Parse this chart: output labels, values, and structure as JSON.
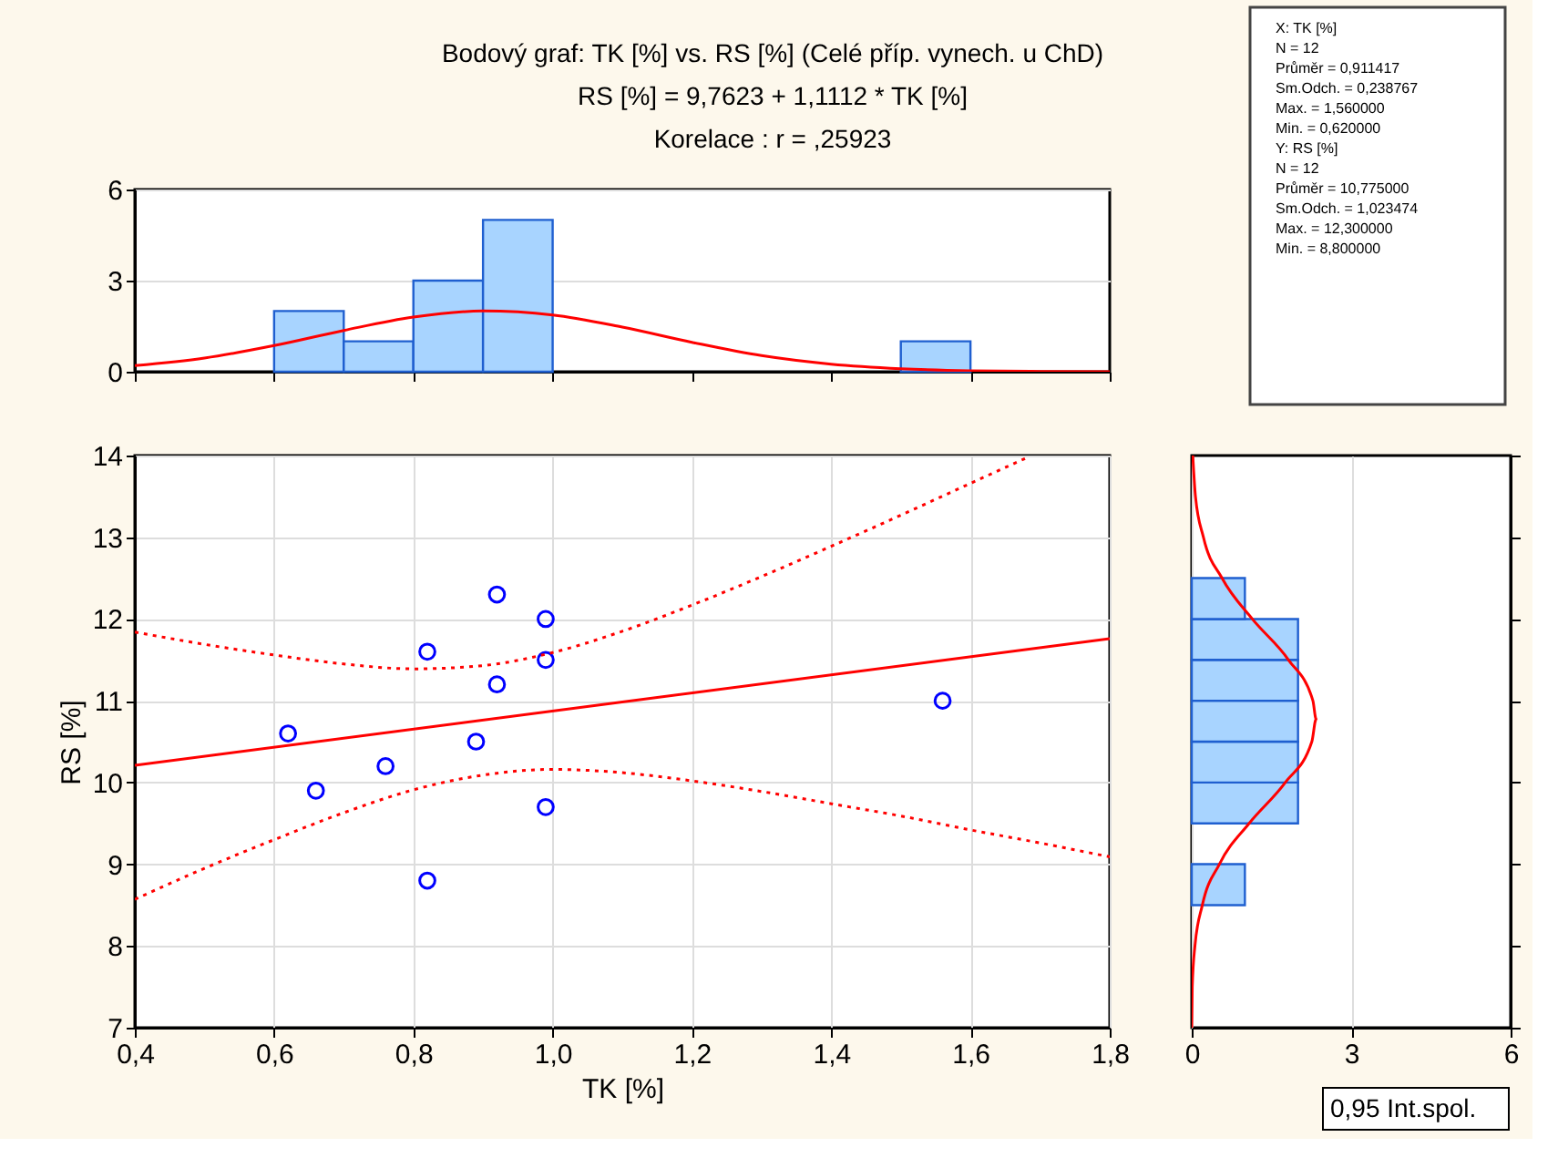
{
  "chart_data": [
    {
      "type": "histogram",
      "title": "Bodový graf: TK [%] vs. RS [%] (Celé příp. vynech. u ChD)",
      "subtitle": "RS [%] = 9,7623 + 1,1112 * TK [%]",
      "annotations": [
        "Korelace :    r = ,25923"
      ],
      "bins": [
        0.6,
        0.7,
        0.8,
        0.9,
        1.0,
        1.1,
        1.2,
        1.3,
        1.4,
        1.5,
        1.6
      ],
      "values": [
        2,
        1,
        3,
        5,
        0,
        0,
        0,
        0,
        0,
        1
      ],
      "color": "#a8d4ff",
      "series": [
        {
          "type": "line",
          "color": "#ff0000",
          "line_style": "solid",
          "x": [
            0.4,
            0.5,
            0.6,
            0.7,
            0.8,
            0.9,
            1.0,
            1.1,
            1.2,
            1.3,
            1.4,
            1.5,
            1.6,
            1.7,
            1.8
          ],
          "values": [
            0.2,
            0.45,
            0.86,
            1.36,
            1.8,
            2.0,
            1.87,
            1.47,
            0.97,
            0.53,
            0.25,
            0.1,
            0.03,
            0.01,
            0
          ]
        }
      ],
      "xlim": [
        0.4,
        1.8
      ],
      "xticks": [
        {
          "value": 0.4,
          "label": null
        },
        {
          "value": 0.6,
          "label": null
        },
        {
          "value": 0.8,
          "label": null
        },
        {
          "value": 1.0,
          "label": null
        },
        {
          "value": 1.2,
          "label": null
        },
        {
          "value": 1.4,
          "label": null
        },
        {
          "value": 1.6,
          "label": null
        },
        {
          "value": 1.8,
          "label": null
        }
      ],
      "ylim": [
        0,
        6
      ],
      "yticks": [
        0,
        3,
        6
      ],
      "tick_labels": "y",
      "grid": "y"
    },
    {
      "type": "other",
      "annotations": [
        "X:  TK [%]",
        "N = 12",
        "Průměr = 0,911417",
        "Sm.Odch. = 0,238767",
        "Max. = 1,560000",
        "Min. = 0,620000",
        "Y:  RS [%]",
        "N = 12",
        "Průměr = 10,775000",
        "Sm.Odch. = 1,023474",
        "Max. = 12,300000",
        "Min. = 8,800000"
      ]
    },
    {
      "type": "scatter",
      "xlabel": "TK [%]",
      "ylabel": "RS [%]",
      "annotations": [
        "0,95 Int.spol."
      ],
      "series": [
        {
          "type": "scatter",
          "color": "#0000ff",
          "marker": "circle",
          "x": [
            0.62,
            0.66,
            0.76,
            0.82,
            0.82,
            0.89,
            0.92,
            0.92,
            0.99,
            0.99,
            0.99,
            1.56
          ],
          "values": [
            10.6,
            9.9,
            10.2,
            11.6,
            8.8,
            10.5,
            12.3,
            11.2,
            12.0,
            11.5,
            9.7,
            11.0
          ]
        },
        {
          "type": "line",
          "color": "#ff0000",
          "line_style": "solid",
          "x": [
            0.4,
            1.8
          ],
          "values": [
            10.21,
            11.76
          ]
        },
        {
          "type": "line",
          "color": "#ff0000",
          "line_style": "dotted",
          "x": [
            0.4,
            0.5,
            0.6,
            0.7,
            0.8,
            0.9,
            1.0,
            1.1,
            1.2,
            1.3,
            1.4,
            1.5,
            1.6,
            1.68
          ],
          "values": [
            11.84,
            11.69,
            11.56,
            11.45,
            11.39,
            11.43,
            11.59,
            11.85,
            12.17,
            12.52,
            12.89,
            13.27,
            13.66,
            13.97
          ]
        },
        {
          "type": "line",
          "color": "#ff0000",
          "line_style": "dotted",
          "x": [
            0.4,
            0.5,
            0.6,
            0.7,
            0.8,
            0.9,
            1.0,
            1.1,
            1.2,
            1.3,
            1.4,
            1.5,
            1.6,
            1.7,
            1.8
          ],
          "values": [
            8.57,
            8.95,
            9.3,
            9.63,
            9.91,
            10.09,
            10.16,
            10.12,
            10.02,
            9.89,
            9.74,
            9.59,
            9.42,
            9.26,
            9.09
          ]
        }
      ],
      "xlim": [
        0.4,
        1.8
      ],
      "xticks": [
        {
          "value": 0.4,
          "label": "0,4"
        },
        {
          "value": 0.6,
          "label": "0,6"
        },
        {
          "value": 0.8,
          "label": "0,8"
        },
        {
          "value": 1.0,
          "label": "1,0"
        },
        {
          "value": 1.2,
          "label": "1,2"
        },
        {
          "value": 1.4,
          "label": "1,4"
        },
        {
          "value": 1.6,
          "label": "1,6"
        },
        {
          "value": 1.8,
          "label": "1,8"
        }
      ],
      "ylim": [
        7,
        14
      ],
      "yticks": [
        7,
        8,
        9,
        10,
        11,
        12,
        13,
        14
      ],
      "grid": true
    },
    {
      "type": "histogram",
      "orientation": "horizontal",
      "bins": [
        8.5,
        9.0,
        9.5,
        10.0,
        10.5,
        11.0,
        11.5,
        12.0,
        12.5
      ],
      "values": [
        1,
        0,
        2,
        2,
        2,
        2,
        2,
        1
      ],
      "color": "#a8d4ff",
      "series": [
        {
          "type": "line",
          "color": "#ff0000",
          "line_style": "solid",
          "x": [
            7,
            7.5,
            8,
            8.5,
            9,
            9.5,
            10,
            10.5,
            10.775,
            11,
            11.5,
            12,
            12.5,
            13,
            13.5,
            14
          ],
          "values": [
            0.0,
            0.01,
            0.06,
            0.2,
            0.52,
            1.08,
            1.76,
            2.26,
            2.34,
            2.28,
            1.82,
            1.14,
            0.57,
            0.22,
            0.07,
            0.02
          ]
        }
      ],
      "xlim": [
        0,
        6
      ],
      "xticks": [
        0,
        3,
        6
      ],
      "ylim": [
        7,
        14
      ],
      "yticks": [
        {
          "value": 7,
          "label": null
        },
        {
          "value": 8,
          "label": null
        },
        {
          "value": 9,
          "label": null
        },
        {
          "value": 10,
          "label": null
        },
        {
          "value": 11,
          "label": null
        },
        {
          "value": 12,
          "label": null
        },
        {
          "value": 13,
          "label": null
        },
        {
          "value": 14,
          "label": null
        }
      ],
      "tick_labels": "x",
      "grid": "x"
    }
  ]
}
